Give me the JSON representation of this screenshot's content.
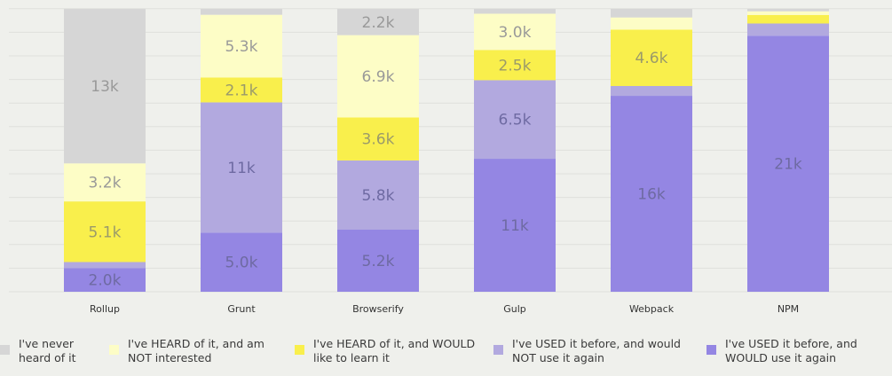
{
  "chart_data": {
    "type": "bar",
    "stacked": true,
    "categories": [
      "Rollup",
      "Grunt",
      "Browserify",
      "Gulp",
      "Webpack",
      "NPM"
    ],
    "series": [
      {
        "name": "I've USED it before, and WOULD use it again",
        "color": "#9486e3",
        "values": [
          2000,
          5000,
          5200,
          11000,
          16000,
          21000
        ],
        "labels": [
          "2.0k",
          "5.0k",
          "5.2k",
          "11k",
          "16k",
          "21k"
        ]
      },
      {
        "name": "I've USED it before, and would NOT use it again",
        "color": "#b2a9df",
        "values": [
          500,
          11000,
          5800,
          6500,
          800,
          1000
        ],
        "labels": [
          "",
          "11k",
          "5.8k",
          "6.5k",
          "",
          ""
        ]
      },
      {
        "name": "I've HEARD of it, and WOULD like to learn it",
        "color": "#f9ef4c",
        "values": [
          5100,
          2100,
          3600,
          2500,
          4600,
          700
        ],
        "labels": [
          "5.1k",
          "2.1k",
          "3.6k",
          "2.5k",
          "4.6k",
          ""
        ]
      },
      {
        "name": "I've HEARD of it, and am NOT interested",
        "color": "#fdfdc6",
        "values": [
          3200,
          5300,
          6900,
          3000,
          1000,
          300
        ],
        "labels": [
          "3.2k",
          "5.3k",
          "6.9k",
          "3.0k",
          "",
          ""
        ]
      },
      {
        "name": "I've never heard of it",
        "color": "#d6d6d6",
        "values": [
          13000,
          500,
          2200,
          400,
          700,
          200
        ],
        "labels": [
          "13k",
          "",
          "2.2k",
          "",
          "",
          ""
        ]
      }
    ],
    "legend_position": "bottom",
    "grid": true
  },
  "legend": [
    {
      "text": "I've never heard of it",
      "color": "#d6d6d6"
    },
    {
      "text": "I've HEARD of it, and am NOT interested",
      "color": "#fdfdc6"
    },
    {
      "text": "I've HEARD of it, and WOULD like to learn it",
      "color": "#f9ef4c"
    },
    {
      "text": "I've USED it before, and would NOT use it again",
      "color": "#b2a9df"
    },
    {
      "text": "I've USED it before, and WOULD use it again",
      "color": "#9486e3"
    }
  ]
}
